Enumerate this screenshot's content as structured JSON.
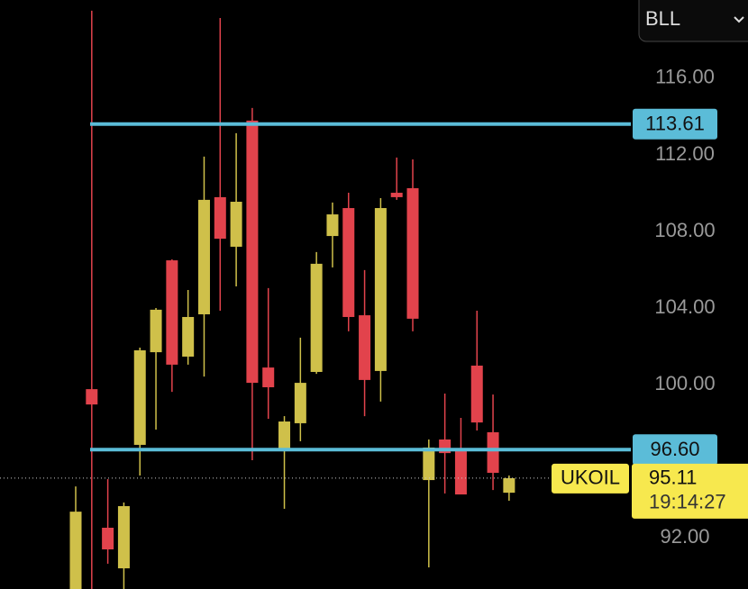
{
  "chart_data": {
    "type": "candlestick",
    "symbol_selector": "BLL",
    "symbol": "UKOIL",
    "countdown": "19:14:27",
    "up_color": "#cfc04a",
    "down_color": "#e2434c",
    "ylim": [
      89.32,
      120.09
    ],
    "yticks": [
      {
        "value": 92,
        "label": "92.00"
      },
      {
        "value": 100,
        "label": "100.00"
      },
      {
        "value": 104,
        "label": "104.00"
      },
      {
        "value": 108,
        "label": "108.00"
      },
      {
        "value": 112,
        "label": "112.00"
      },
      {
        "value": 116,
        "label": "116.00"
      }
    ],
    "open": [
      88.5,
      99.76,
      92.52,
      90.4,
      96.85,
      101.69,
      106.49,
      101.46,
      103.67,
      109.79,
      107.2,
      113.79,
      100.89,
      96.56,
      97.98,
      100.66,
      107.76,
      109.22,
      103.62,
      100.71,
      110.02,
      110.26,
      95.01,
      97.13,
      96.61,
      100.99,
      97.51,
      94.35
    ],
    "high": [
      94.68,
      119.53,
      95.06,
      93.84,
      101.93,
      104.0,
      106.54,
      104.94,
      111.91,
      119.15,
      113.13,
      114.45,
      105.04,
      98.35,
      102.45,
      106.92,
      109.51,
      110.02,
      105.98,
      109.74,
      111.86,
      111.76,
      97.13,
      99.53,
      98.26,
      103.86,
      99.48,
      95.25
    ],
    "low": [
      88.0,
      88.0,
      90.64,
      89.0,
      95.25,
      97.65,
      99.62,
      101.04,
      100.42,
      103.86,
      105.13,
      96.05,
      98.21,
      93.51,
      97.04,
      100.56,
      106.12,
      102.78,
      98.35,
      99.11,
      109.65,
      102.78,
      90.45,
      94.31,
      94.26,
      97.6,
      94.49,
      93.93
    ],
    "close": [
      93.36,
      98.96,
      91.39,
      93.65,
      101.79,
      103.91,
      101.04,
      103.53,
      109.65,
      107.62,
      109.55,
      100.09,
      99.86,
      98.07,
      100.09,
      106.31,
      108.89,
      103.53,
      100.24,
      109.22,
      109.79,
      103.44,
      96.71,
      96.42,
      94.26,
      98.02,
      95.39,
      95.11
    ],
    "hlines": [
      {
        "value": 113.61,
        "color": "#5bbcd8"
      },
      {
        "value": 96.6,
        "label": "96.60",
        "color": "#5bbcd8"
      }
    ],
    "last_price": {
      "value": 95.11,
      "color": "#f7e84e"
    }
  }
}
